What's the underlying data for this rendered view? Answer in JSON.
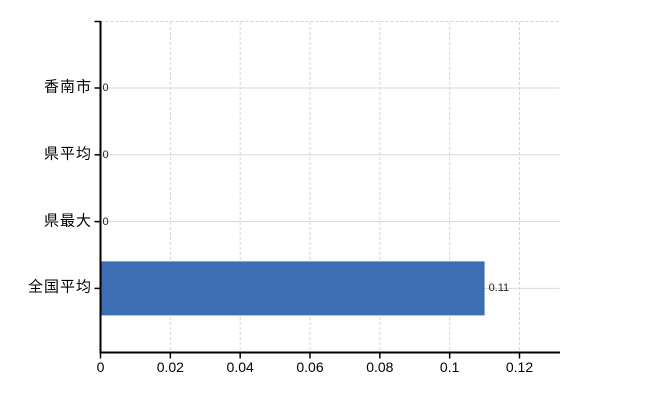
{
  "chart_data": {
    "type": "bar",
    "orientation": "horizontal",
    "title": "",
    "xlabel": "",
    "ylabel": "",
    "categories": [
      "香南市",
      "県平均",
      "県最大",
      "全国平均"
    ],
    "values": [
      0,
      0,
      0,
      0.11
    ],
    "value_labels": [
      "0",
      "0",
      "0",
      "0.11"
    ],
    "x_ticks": [
      0,
      0.02,
      0.04,
      0.06,
      0.08,
      0.1,
      0.12
    ],
    "x_tick_labels": [
      "0",
      "0.02",
      "0.04",
      "0.06",
      "0.08",
      "0.1",
      "0.12"
    ],
    "xlim": [
      0,
      0.1315
    ],
    "grid": "on",
    "legend": "none",
    "colors": {
      "bar": "#3d6db3",
      "axis": "#000000",
      "h_gridline": "#d5dbce",
      "v_gridline": "#d6d1d8",
      "category_text": "#000000",
      "tick_text": "#000000",
      "value_text": "#222222",
      "background": "#ffffff"
    }
  }
}
